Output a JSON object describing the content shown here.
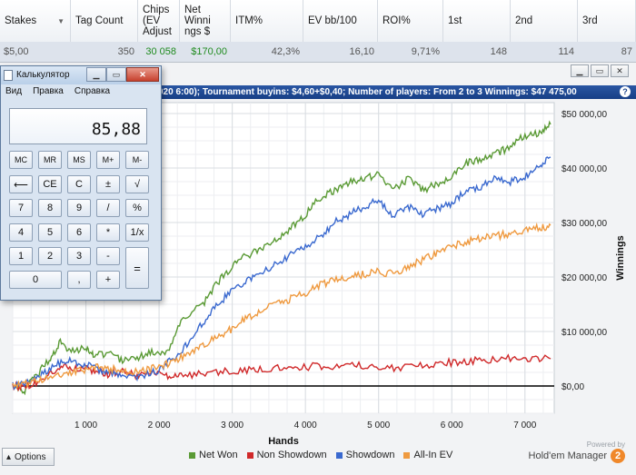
{
  "stats_table": {
    "columns": [
      {
        "label": "Stakes",
        "width": 78,
        "sort": true
      },
      {
        "label": "Tag Count",
        "width": 74
      },
      {
        "label": "Chips\n(EV\nAdjust",
        "width": 46
      },
      {
        "label": "Net\nWinni\nngs $",
        "width": 56
      },
      {
        "label": "ITM%",
        "width": 80
      },
      {
        "label": "EV bb/100",
        "width": 82
      },
      {
        "label": "ROI%",
        "width": 72
      },
      {
        "label": "1st",
        "width": 74
      },
      {
        "label": "2nd",
        "width": 74
      },
      {
        "label": "3rd",
        "width": 64
      }
    ],
    "row": [
      "$5,00",
      "350",
      "30 058",
      "$170,00",
      "42,3%",
      "16,10",
      "9,71%",
      "148",
      "114",
      "87"
    ]
  },
  "graph_window": {
    "title": "020 6:00); Tournament buyins: $4,60+$0,40; Number of players: From 2 to 3 Winnings: $47 475,00",
    "help_icon": "?",
    "window_buttons": [
      "minimize-icon",
      "restore-icon",
      "close-icon"
    ]
  },
  "calculator": {
    "title": "Калькулятор",
    "menu": [
      "Вид",
      "Правка",
      "Справка"
    ],
    "display": "85,88",
    "rows": [
      [
        "MC",
        "MR",
        "MS",
        "M+",
        "M-"
      ],
      [
        "⟵",
        "CE",
        "C",
        "±",
        "√"
      ],
      [
        "7",
        "8",
        "9",
        "/",
        "%"
      ],
      [
        "4",
        "5",
        "6",
        "*",
        "1/x"
      ],
      [
        "1",
        "2",
        "3",
        "-",
        "="
      ],
      [
        "0",
        ",",
        "+"
      ]
    ]
  },
  "chart_data": {
    "type": "line",
    "title": "",
    "xlabel": "Hands",
    "ylabel": "Winnings",
    "xlim": [
      0,
      7400
    ],
    "ylim": [
      -5000,
      52000
    ],
    "x_ticks": [
      1000,
      2000,
      3000,
      4000,
      5000,
      6000,
      7000
    ],
    "x_tick_labels": [
      "1 000",
      "2 000",
      "3 000",
      "4 000",
      "5 000",
      "6 000",
      "7 000"
    ],
    "y_ticks": [
      0,
      10000,
      20000,
      30000,
      40000,
      50000
    ],
    "y_tick_labels": [
      "$0,00",
      "$10 000,00",
      "$20 000,00",
      "$30 000,00",
      "$40 000,00",
      "$50 000,00"
    ],
    "grid": true,
    "legend_position": "bottom",
    "series": [
      {
        "name": "Net Won",
        "color": "#5a9a35",
        "x": [
          0,
          150,
          300,
          500,
          650,
          800,
          1000,
          1100,
          1300,
          1500,
          1700,
          1900,
          2100,
          2300,
          2600,
          2800,
          3000,
          3200,
          3400,
          3600,
          3800,
          4000,
          4200,
          4400,
          4600,
          4800,
          5000,
          5200,
          5400,
          5600,
          5800,
          6000,
          6200,
          6400,
          6600,
          6800,
          7000,
          7200,
          7350
        ],
        "y": [
          0,
          -1000,
          1500,
          5000,
          8000,
          6500,
          7000,
          5500,
          6000,
          4500,
          5000,
          6500,
          6000,
          12000,
          15000,
          19000,
          22000,
          24000,
          25000,
          27000,
          29000,
          31500,
          34500,
          36000,
          37500,
          38000,
          39000,
          36000,
          38000,
          36000,
          37000,
          38500,
          41000,
          41500,
          42500,
          44000,
          46000,
          46500,
          48000
        ]
      },
      {
        "name": "Non Showdown",
        "color": "#d0292a",
        "x": [
          0,
          150,
          300,
          500,
          700,
          900,
          1100,
          1300,
          1500,
          1700,
          1900,
          2100,
          2300,
          2600,
          2900,
          3200,
          3500,
          3800,
          4100,
          4400,
          4700,
          5000,
          5300,
          5600,
          5900,
          6200,
          6500,
          6800,
          7100,
          7350
        ],
        "y": [
          0,
          -300,
          500,
          2200,
          3500,
          3200,
          3000,
          2200,
          2500,
          2000,
          2300,
          2000,
          2200,
          2100,
          2800,
          3000,
          3300,
          3100,
          3600,
          3400,
          3700,
          3500,
          3300,
          3800,
          4200,
          4600,
          4800,
          5100,
          4900,
          5000
        ]
      },
      {
        "name": "Showdown",
        "color": "#3a69cf",
        "x": [
          0,
          200,
          400,
          600,
          800,
          1000,
          1200,
          1400,
          1600,
          1800,
          2000,
          2200,
          2400,
          2600,
          2800,
          3000,
          3200,
          3400,
          3600,
          3800,
          4000,
          4200,
          4400,
          4600,
          4800,
          5000,
          5200,
          5400,
          5600,
          5800,
          6000,
          6200,
          6400,
          6600,
          6800,
          7000,
          7200,
          7350
        ],
        "y": [
          0,
          500,
          2000,
          4000,
          4500,
          3800,
          3000,
          2500,
          1500,
          2000,
          3000,
          5000,
          8000,
          11500,
          15000,
          17500,
          19500,
          21000,
          22500,
          24000,
          25500,
          27500,
          30000,
          31500,
          33000,
          34000,
          31000,
          33000,
          31500,
          32500,
          33500,
          36000,
          36500,
          38000,
          37500,
          38500,
          40500,
          42000
        ]
      },
      {
        "name": "All-In EV",
        "color": "#ef9a40",
        "x": [
          0,
          200,
          400,
          600,
          800,
          1000,
          1200,
          1400,
          1600,
          1800,
          2000,
          2200,
          2400,
          2600,
          2800,
          3000,
          3200,
          3400,
          3600,
          3800,
          4000,
          4200,
          4400,
          4600,
          4800,
          5000,
          5200,
          5400,
          5600,
          5800,
          6000,
          6200,
          6400,
          6600,
          6800,
          7000,
          7200,
          7350
        ],
        "y": [
          0,
          500,
          1000,
          2000,
          2500,
          3000,
          3500,
          3000,
          2500,
          2800,
          3500,
          4500,
          6000,
          7500,
          9000,
          10500,
          12500,
          14000,
          15000,
          16000,
          17000,
          18500,
          19500,
          20000,
          20500,
          21000,
          20500,
          22000,
          23000,
          24500,
          25500,
          26500,
          27000,
          27500,
          28000,
          28500,
          29000,
          29500
        ]
      }
    ]
  },
  "bottom_bar": {
    "options_label": "Options",
    "brand_powered": "Powered by",
    "brand_name": "Hold'em Manager",
    "brand_logo": "2"
  }
}
